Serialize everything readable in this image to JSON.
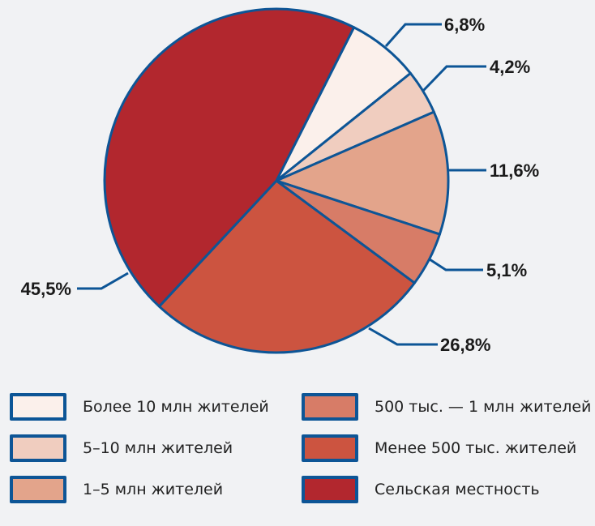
{
  "chart_data": {
    "type": "pie",
    "start_angle_deg": 26.8,
    "direction": "clockwise",
    "border_color": "#0d5596",
    "slices": [
      {
        "name": "Более 10 млн жителей",
        "value": 6.8,
        "label": "6,8%",
        "color": "#fbf0eb"
      },
      {
        "name": "5–10 млн жителей",
        "value": 4.2,
        "label": "4,2%",
        "color": "#f0cdbf"
      },
      {
        "name": "1–5 млн жителей",
        "value": 11.6,
        "label": "11,6%",
        "color": "#e3a48b"
      },
      {
        "name": "500 тыс. — 1 млн жителей",
        "value": 5.1,
        "label": "5,1%",
        "color": "#d77c67"
      },
      {
        "name": "Менее 500 тыс. жителей",
        "value": 26.8,
        "label": "26,8%",
        "color": "#cc5440"
      },
      {
        "name": "Сельская местность",
        "value": 45.5,
        "label": "45,5%",
        "color": "#b2272e"
      }
    ],
    "legend_placement": "bottom"
  }
}
